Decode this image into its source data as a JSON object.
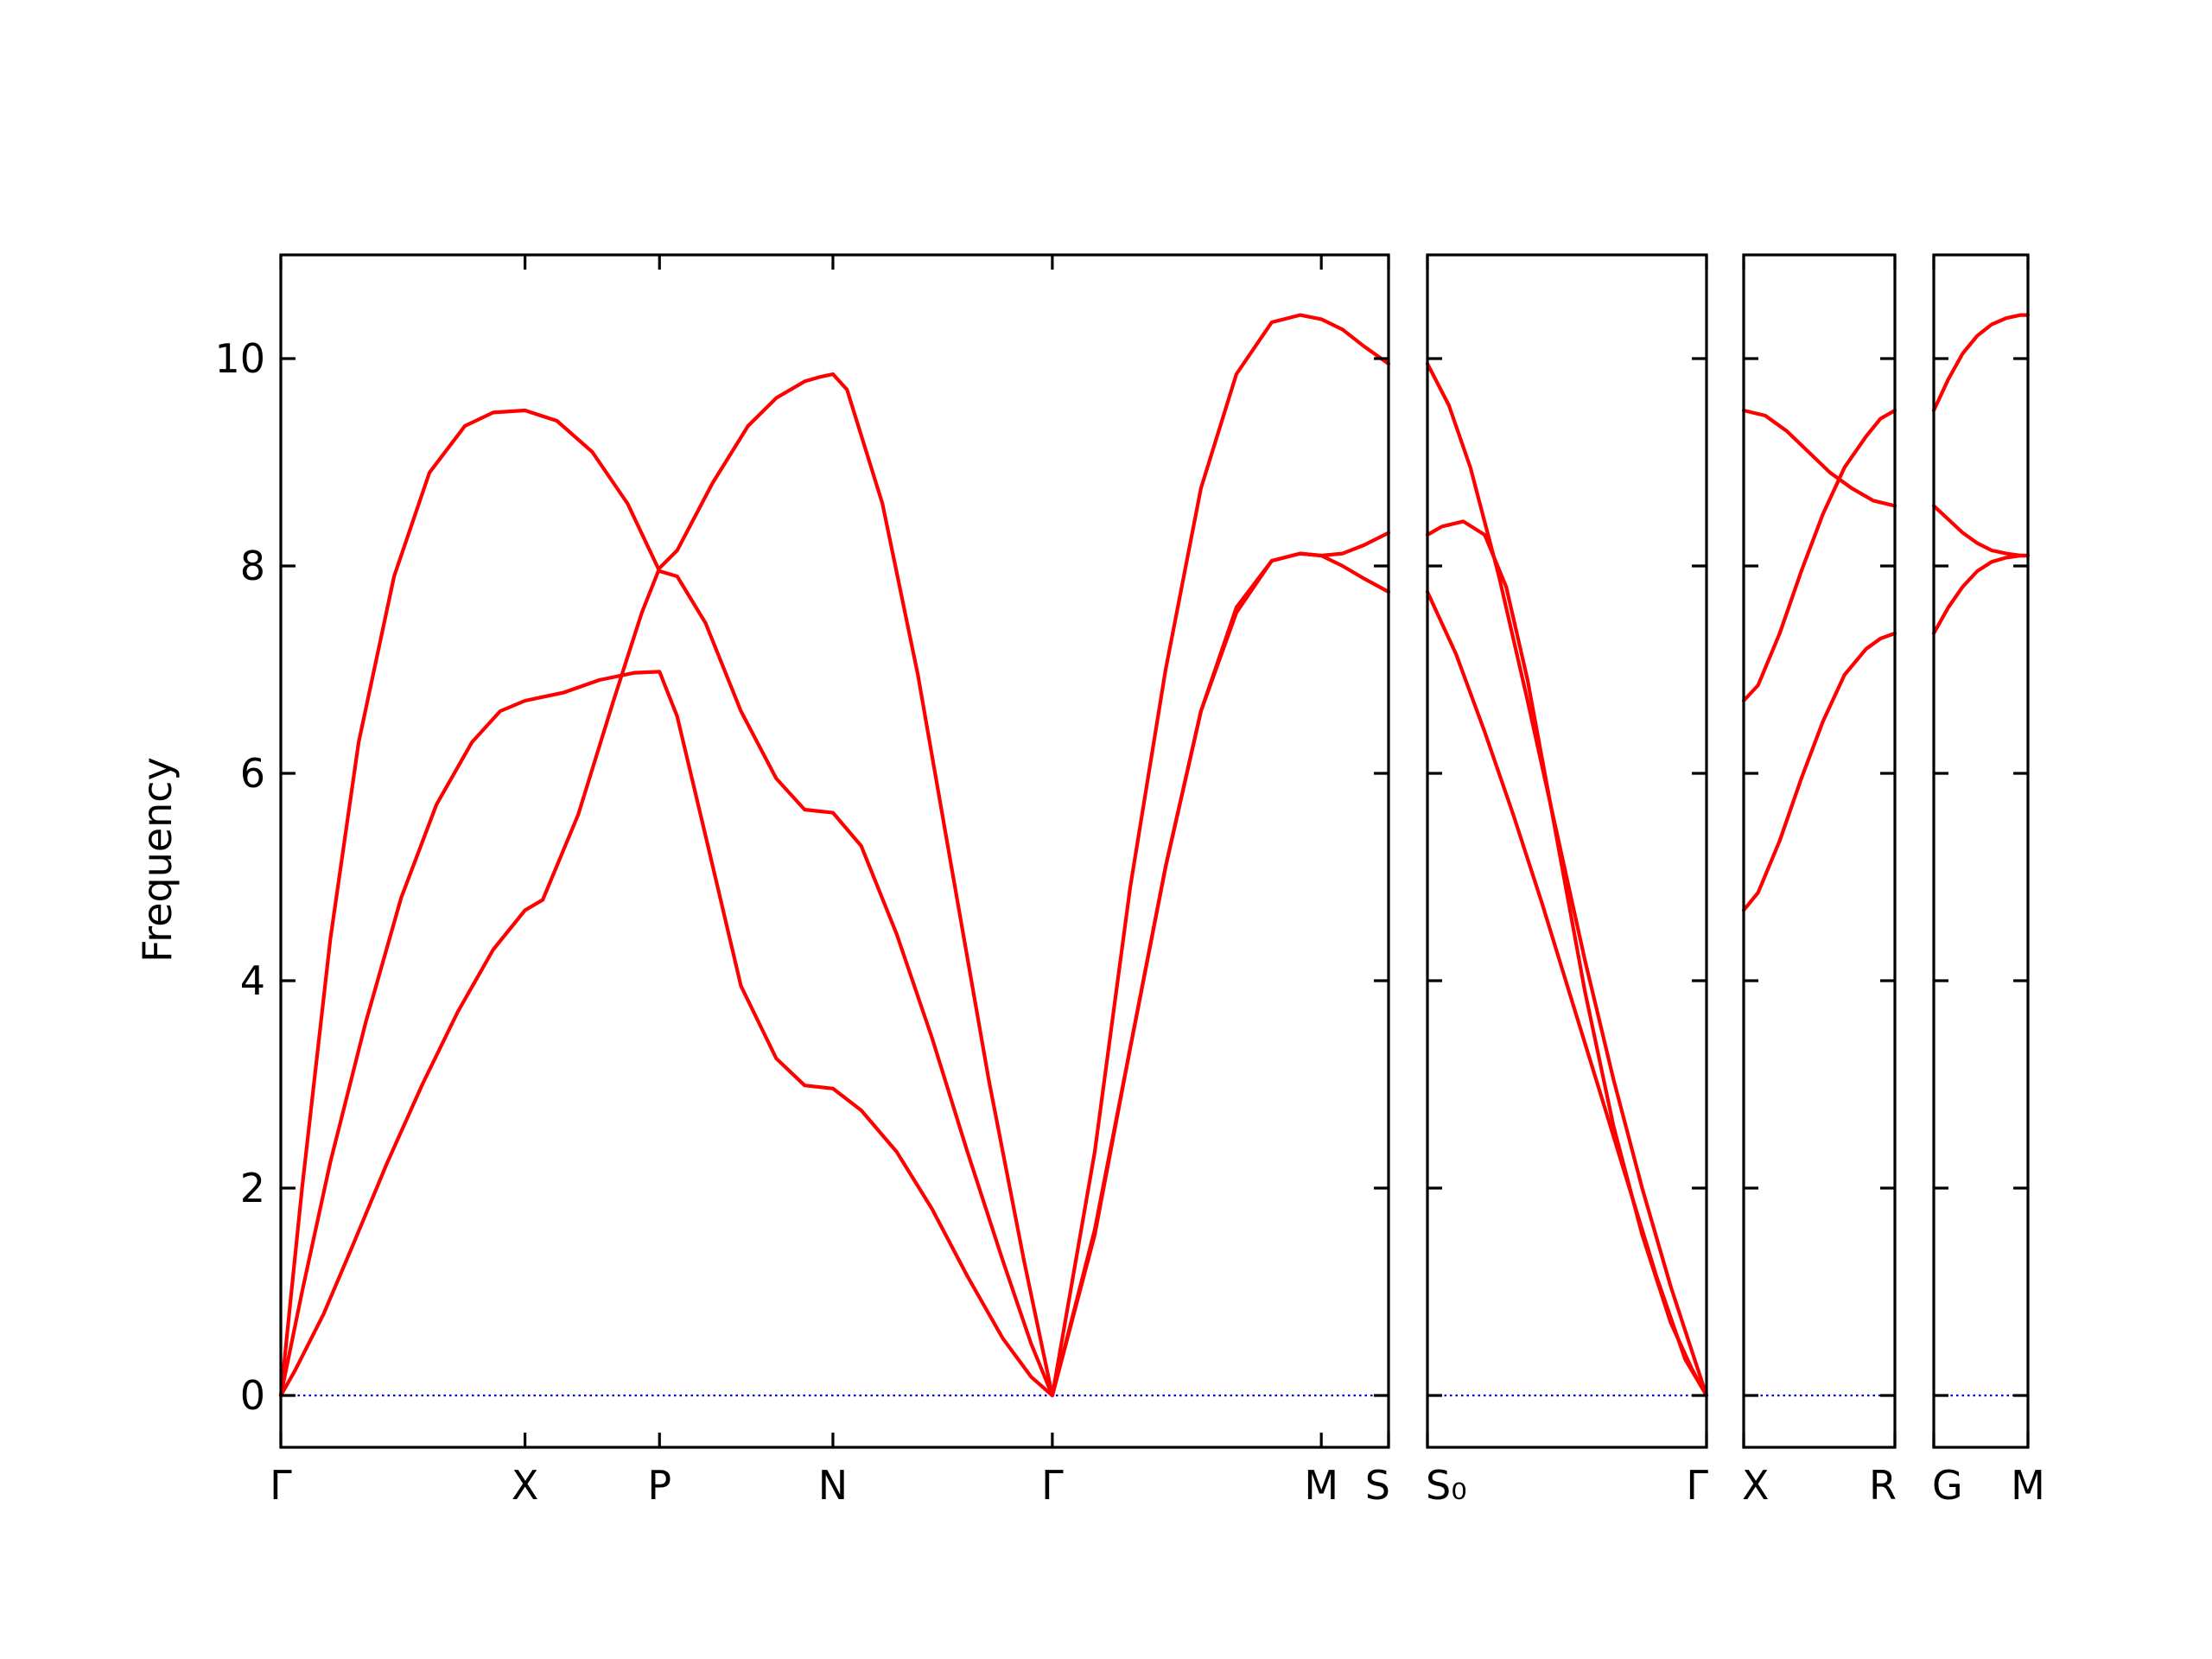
{
  "chart_data": {
    "type": "line",
    "title": "",
    "xlabel": "",
    "ylabel": "Frequency",
    "ylim": [
      -0.5,
      11.0
    ],
    "yticks": [
      0,
      2,
      4,
      6,
      8,
      10
    ],
    "colors": {
      "bands": "#ff0000",
      "zero_line": "#0000cc",
      "frame": "#000000"
    },
    "grid": false,
    "legend": "none",
    "panels": [
      {
        "xlim": [
          0,
          1.565
        ],
        "xticks": [
          {
            "x": 0.0,
            "label": "Γ"
          },
          {
            "x": 0.345,
            "label": "X"
          },
          {
            "x": 0.535,
            "label": "P"
          },
          {
            "x": 0.78,
            "label": "N"
          },
          {
            "x": 1.09,
            "label": "Γ"
          },
          {
            "x": 1.47,
            "label": "M"
          },
          {
            "x": 1.565,
            "label": "S"
          }
        ],
        "series": [
          {
            "x": [
              0,
              0.02,
              0.06,
              0.1,
              0.15,
              0.2,
              0.25,
              0.3,
              0.345,
              0.37,
              0.42,
              0.47,
              0.51,
              0.535,
              0.56,
              0.61,
              0.66,
              0.7,
              0.74,
              0.76,
              0.78,
              0.8,
              0.85,
              0.9,
              0.95,
              1.0,
              1.05,
              1.09,
              1.15,
              1.2,
              1.25,
              1.3,
              1.35,
              1.4,
              1.44,
              1.47,
              1.5,
              1.53,
              1.565
            ],
            "y": [
              0,
              0.24,
              0.78,
              1.42,
              2.24,
              3.0,
              3.7,
              4.3,
              4.68,
              4.78,
              5.6,
              6.7,
              7.55,
              7.98,
              8.15,
              8.8,
              9.35,
              9.62,
              9.78,
              9.82,
              9.85,
              9.7,
              8.6,
              6.95,
              5.0,
              3.05,
              1.3,
              0.0,
              1.6,
              3.35,
              5.1,
              6.6,
              7.6,
              8.05,
              8.12,
              8.1,
              8.12,
              8.2,
              8.32
            ]
          },
          {
            "x": [
              0,
              0.03,
              0.07,
              0.12,
              0.17,
              0.22,
              0.27,
              0.31,
              0.345,
              0.4,
              0.45,
              0.5,
              0.535,
              0.56,
              0.6,
              0.65,
              0.7,
              0.74,
              0.78,
              0.82,
              0.87,
              0.92,
              0.97,
              1.02,
              1.06,
              1.09,
              1.15,
              1.2,
              1.25,
              1.3,
              1.35,
              1.4,
              1.44,
              1.47,
              1.5,
              1.53,
              1.565
            ],
            "y": [
              0,
              1.0,
              2.25,
              3.6,
              4.8,
              5.7,
              6.3,
              6.6,
              6.7,
              6.78,
              6.9,
              6.97,
              6.98,
              6.55,
              5.4,
              3.95,
              3.25,
              2.99,
              2.96,
              2.75,
              2.35,
              1.8,
              1.15,
              0.55,
              0.18,
              0.0,
              1.55,
              3.35,
              5.1,
              6.6,
              7.55,
              8.05,
              8.12,
              8.1,
              8.0,
              7.88,
              7.75
            ]
          },
          {
            "x": [
              0,
              0.03,
              0.07,
              0.11,
              0.16,
              0.21,
              0.26,
              0.3,
              0.345,
              0.39,
              0.44,
              0.49,
              0.535,
              0.56,
              0.6,
              0.65,
              0.7,
              0.74,
              0.78,
              0.82,
              0.87,
              0.92,
              0.97,
              1.02,
              1.06,
              1.09,
              1.15,
              1.2,
              1.25,
              1.3,
              1.35,
              1.4,
              1.44,
              1.47,
              1.5,
              1.53,
              1.565
            ],
            "y": [
              0,
              2.0,
              4.4,
              6.3,
              7.9,
              8.9,
              9.35,
              9.48,
              9.5,
              9.4,
              9.1,
              8.6,
              7.95,
              7.9,
              7.45,
              6.6,
              5.95,
              5.65,
              5.62,
              5.3,
              4.45,
              3.45,
              2.35,
              1.3,
              0.5,
              0.0,
              2.35,
              4.9,
              7.0,
              8.75,
              9.85,
              10.35,
              10.42,
              10.38,
              10.28,
              10.12,
              9.95
            ]
          }
        ]
      },
      {
        "xlim": [
          0,
          0.39
        ],
        "xticks": [
          {
            "x": 0.0,
            "label": "S₀"
          },
          {
            "x": 0.39,
            "label": "Γ"
          }
        ],
        "series": [
          {
            "x": [
              0,
              0.03,
              0.06,
              0.1,
              0.14,
              0.18,
              0.22,
              0.26,
              0.3,
              0.34,
              0.37,
              0.39
            ],
            "y": [
              9.95,
              9.55,
              8.95,
              7.9,
              6.7,
              5.45,
              4.2,
              3.05,
              2.0,
              1.05,
              0.42,
              0.0
            ]
          },
          {
            "x": [
              0,
              0.02,
              0.05,
              0.08,
              0.11,
              0.14,
              0.18,
              0.22,
              0.26,
              0.3,
              0.34,
              0.37,
              0.39
            ],
            "y": [
              8.3,
              8.38,
              8.43,
              8.3,
              7.8,
              6.9,
              5.4,
              3.9,
              2.6,
              1.55,
              0.7,
              0.25,
              0.0
            ]
          },
          {
            "x": [
              0,
              0.04,
              0.08,
              0.12,
              0.16,
              0.2,
              0.24,
              0.28,
              0.32,
              0.36,
              0.39
            ],
            "y": [
              7.75,
              7.15,
              6.4,
              5.6,
              4.75,
              3.85,
              2.95,
              2.05,
              1.15,
              0.35,
              0.0
            ]
          }
        ]
      },
      {
        "xlim": [
          0,
          0.21
        ],
        "xticks": [
          {
            "x": 0.0,
            "label": "X"
          },
          {
            "x": 0.21,
            "label": "R"
          }
        ],
        "series": [
          {
            "x": [
              0,
              0.02,
              0.05,
              0.08,
              0.11,
              0.14,
              0.17,
              0.19,
              0.21
            ],
            "y": [
              4.68,
              4.85,
              5.35,
              5.95,
              6.5,
              6.95,
              7.2,
              7.3,
              7.35
            ]
          },
          {
            "x": [
              0,
              0.02,
              0.05,
              0.08,
              0.11,
              0.14,
              0.17,
              0.19,
              0.21
            ],
            "y": [
              6.7,
              6.85,
              7.35,
              7.95,
              8.5,
              8.95,
              9.25,
              9.42,
              9.5
            ]
          },
          {
            "x": [
              0,
              0.03,
              0.06,
              0.09,
              0.12,
              0.15,
              0.18,
              0.21
            ],
            "y": [
              9.5,
              9.45,
              9.3,
              9.1,
              8.9,
              8.75,
              8.63,
              8.58
            ]
          }
        ]
      },
      {
        "xlim": [
          0,
          0.13
        ],
        "xticks": [
          {
            "x": 0.0,
            "label": "G"
          },
          {
            "x": 0.13,
            "label": "M"
          }
        ],
        "series": [
          {
            "x": [
              0,
              0.02,
              0.04,
              0.06,
              0.08,
              0.1,
              0.12,
              0.13
            ],
            "y": [
              7.35,
              7.6,
              7.8,
              7.95,
              8.04,
              8.08,
              8.1,
              8.1
            ]
          },
          {
            "x": [
              0,
              0.02,
              0.04,
              0.06,
              0.08,
              0.1,
              0.12,
              0.13
            ],
            "y": [
              8.58,
              8.45,
              8.32,
              8.22,
              8.15,
              8.12,
              8.1,
              8.1
            ]
          },
          {
            "x": [
              0,
              0.02,
              0.04,
              0.06,
              0.08,
              0.1,
              0.12,
              0.13
            ],
            "y": [
              9.5,
              9.8,
              10.05,
              10.22,
              10.33,
              10.39,
              10.42,
              10.42
            ]
          }
        ]
      }
    ]
  }
}
